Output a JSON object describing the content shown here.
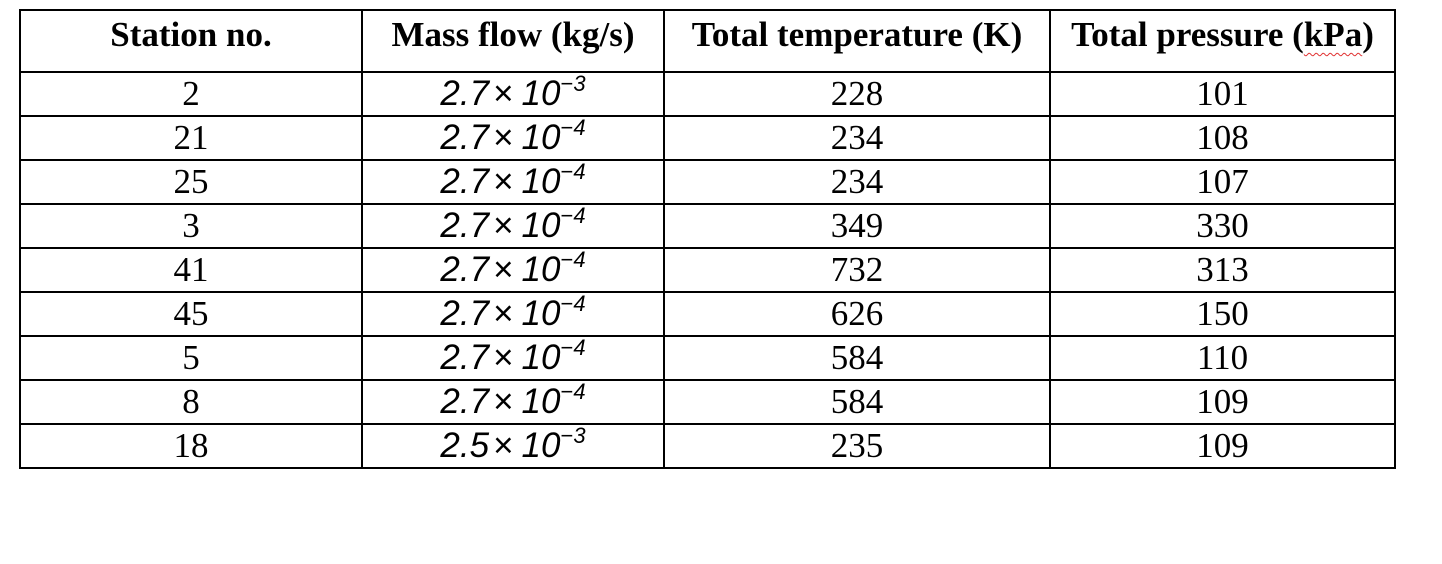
{
  "table": {
    "headers": {
      "station": "Station no.",
      "mass_flow": "Mass flow (kg/s)",
      "total_temperature": "Total temperature (K)",
      "total_pressure_prefix": "Total pressure (",
      "total_pressure_unit": "kPa",
      "total_pressure_suffix": ")"
    },
    "rows": [
      {
        "station": "2",
        "mass_flow": {
          "mantissa": "2.7",
          "times": "×",
          "base": "10",
          "minus": "−",
          "exponent": "3"
        },
        "total_temperature": "228",
        "total_pressure": "101"
      },
      {
        "station": "21",
        "mass_flow": {
          "mantissa": "2.7",
          "times": "×",
          "base": "10",
          "minus": "−",
          "exponent": "4"
        },
        "total_temperature": "234",
        "total_pressure": "108"
      },
      {
        "station": "25",
        "mass_flow": {
          "mantissa": "2.7",
          "times": "×",
          "base": "10",
          "minus": "−",
          "exponent": "4"
        },
        "total_temperature": "234",
        "total_pressure": "107"
      },
      {
        "station": "3",
        "mass_flow": {
          "mantissa": "2.7",
          "times": "×",
          "base": "10",
          "minus": "−",
          "exponent": "4"
        },
        "total_temperature": "349",
        "total_pressure": "330"
      },
      {
        "station": "41",
        "mass_flow": {
          "mantissa": "2.7",
          "times": "×",
          "base": "10",
          "minus": "−",
          "exponent": "4"
        },
        "total_temperature": "732",
        "total_pressure": "313"
      },
      {
        "station": "45",
        "mass_flow": {
          "mantissa": "2.7",
          "times": "×",
          "base": "10",
          "minus": "−",
          "exponent": "4"
        },
        "total_temperature": "626",
        "total_pressure": "150"
      },
      {
        "station": "5",
        "mass_flow": {
          "mantissa": "2.7",
          "times": "×",
          "base": "10",
          "minus": "−",
          "exponent": "4"
        },
        "total_temperature": "584",
        "total_pressure": "110"
      },
      {
        "station": "8",
        "mass_flow": {
          "mantissa": "2.7",
          "times": "×",
          "base": "10",
          "minus": "−",
          "exponent": "4"
        },
        "total_temperature": "584",
        "total_pressure": "109"
      },
      {
        "station": "18",
        "mass_flow": {
          "mantissa": "2.5",
          "times": "×",
          "base": "10",
          "minus": "−",
          "exponent": "3"
        },
        "total_temperature": "235",
        "total_pressure": "109"
      }
    ]
  }
}
